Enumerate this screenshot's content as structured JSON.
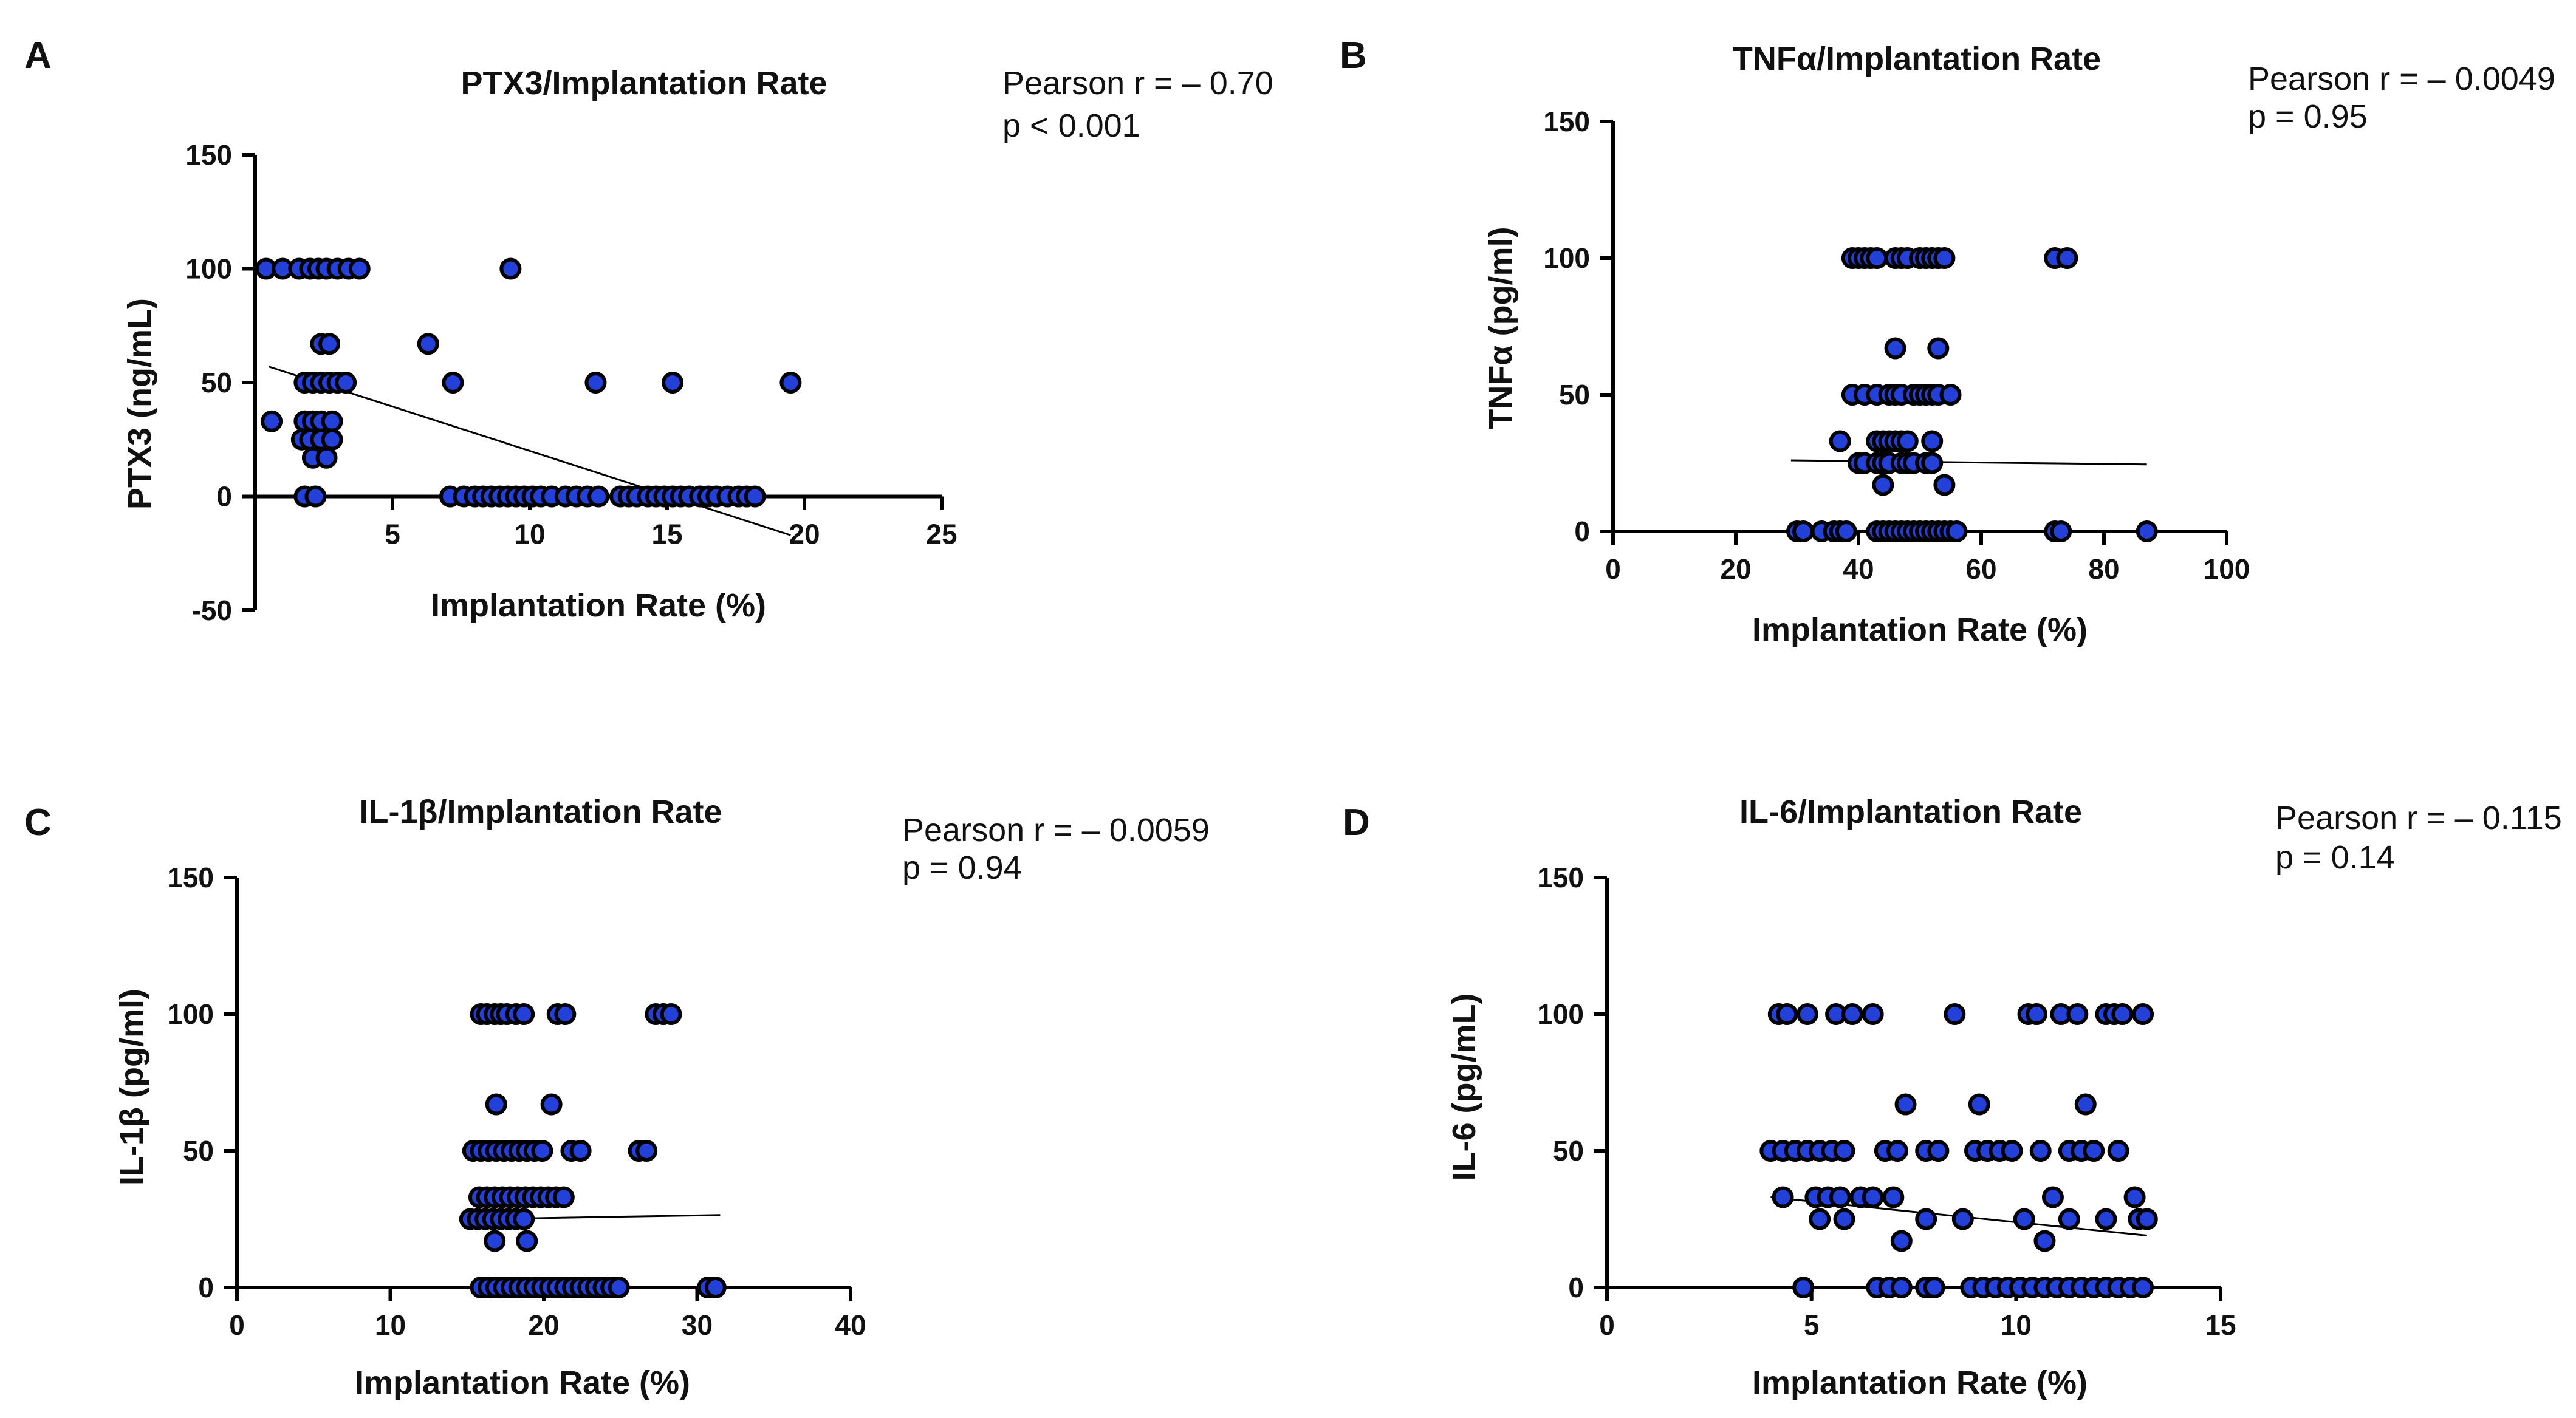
{
  "chart_data": [
    {
      "id": "A",
      "type": "scatter",
      "panel_label": "A",
      "title": "PTX3/Implantation Rate",
      "stat_lines": [
        "Pearson r = – 0.70",
        "p < 0.001"
      ],
      "xlabel": "Implantation Rate (%)",
      "ylabel": "PTX3 (ng/mL)",
      "xlim": [
        0,
        25
      ],
      "ylim": [
        -50,
        150
      ],
      "x_axis_at_y": 0,
      "xticks": [
        5,
        10,
        15,
        20,
        25
      ],
      "yticks": [
        -50,
        0,
        50,
        100,
        150
      ],
      "regression": [
        [
          0.5,
          57
        ],
        [
          19.5,
          -17
        ]
      ],
      "points": [
        [
          0.4,
          100
        ],
        [
          1.0,
          100
        ],
        [
          1.6,
          100
        ],
        [
          2.0,
          100
        ],
        [
          2.3,
          100
        ],
        [
          2.6,
          100
        ],
        [
          3.0,
          100
        ],
        [
          3.4,
          100
        ],
        [
          3.8,
          100
        ],
        [
          9.3,
          100
        ],
        [
          2.4,
          67
        ],
        [
          2.7,
          67
        ],
        [
          6.3,
          67
        ],
        [
          1.8,
          50
        ],
        [
          2.1,
          50
        ],
        [
          2.4,
          50
        ],
        [
          2.7,
          50
        ],
        [
          3.0,
          50
        ],
        [
          3.3,
          50
        ],
        [
          7.2,
          50
        ],
        [
          12.4,
          50
        ],
        [
          15.2,
          50
        ],
        [
          19.5,
          50
        ],
        [
          0.6,
          33
        ],
        [
          1.8,
          33
        ],
        [
          2.1,
          33
        ],
        [
          2.4,
          33
        ],
        [
          2.8,
          33
        ],
        [
          1.7,
          25
        ],
        [
          2.0,
          25
        ],
        [
          2.4,
          25
        ],
        [
          2.8,
          25
        ],
        [
          2.1,
          17
        ],
        [
          2.6,
          17
        ],
        [
          1.8,
          0
        ],
        [
          2.2,
          0
        ],
        [
          7.1,
          0
        ],
        [
          7.6,
          0
        ],
        [
          8.0,
          0
        ],
        [
          8.3,
          0
        ],
        [
          8.6,
          0
        ],
        [
          8.9,
          0
        ],
        [
          9.2,
          0
        ],
        [
          9.5,
          0
        ],
        [
          9.8,
          0
        ],
        [
          10.1,
          0
        ],
        [
          10.4,
          0
        ],
        [
          10.8,
          0
        ],
        [
          11.3,
          0
        ],
        [
          11.7,
          0
        ],
        [
          12.1,
          0
        ],
        [
          12.5,
          0
        ],
        [
          13.3,
          0
        ],
        [
          13.6,
          0
        ],
        [
          13.9,
          0
        ],
        [
          14.3,
          0
        ],
        [
          14.6,
          0
        ],
        [
          14.9,
          0
        ],
        [
          15.2,
          0
        ],
        [
          15.5,
          0
        ],
        [
          15.8,
          0
        ],
        [
          16.2,
          0
        ],
        [
          16.5,
          0
        ],
        [
          16.8,
          0
        ],
        [
          17.2,
          0
        ],
        [
          17.6,
          0
        ],
        [
          17.9,
          0
        ],
        [
          18.2,
          0
        ]
      ]
    },
    {
      "id": "B",
      "type": "scatter",
      "panel_label": "B",
      "title": "TNFα/Implantation Rate",
      "stat_lines": [
        "Pearson r = – 0.0049",
        "p = 0.95"
      ],
      "xlabel": "Implantation Rate (%)",
      "ylabel": "TNFα  (pg/ml)",
      "xlim": [
        0,
        100
      ],
      "ylim": [
        0,
        150
      ],
      "x_axis_at_y": 0,
      "xticks": [
        0,
        20,
        40,
        60,
        80,
        100
      ],
      "yticks": [
        0,
        50,
        100,
        150
      ],
      "regression": [
        [
          29,
          26
        ],
        [
          87,
          24.5
        ]
      ],
      "points": [
        [
          39,
          100
        ],
        [
          40,
          100
        ],
        [
          41,
          100
        ],
        [
          42,
          100
        ],
        [
          43,
          100
        ],
        [
          46,
          100
        ],
        [
          47,
          100
        ],
        [
          48,
          100
        ],
        [
          50,
          100
        ],
        [
          51,
          100
        ],
        [
          52,
          100
        ],
        [
          53,
          100
        ],
        [
          54,
          100
        ],
        [
          72,
          100
        ],
        [
          74,
          100
        ],
        [
          46,
          67
        ],
        [
          53,
          67
        ],
        [
          39,
          50
        ],
        [
          41,
          50
        ],
        [
          43,
          50
        ],
        [
          45,
          50
        ],
        [
          46,
          50
        ],
        [
          47,
          50
        ],
        [
          49,
          50
        ],
        [
          50,
          50
        ],
        [
          51,
          50
        ],
        [
          52,
          50
        ],
        [
          53,
          50
        ],
        [
          55,
          50
        ],
        [
          37,
          33
        ],
        [
          43,
          33
        ],
        [
          44,
          33
        ],
        [
          45,
          33
        ],
        [
          46,
          33
        ],
        [
          47,
          33
        ],
        [
          48,
          33
        ],
        [
          52,
          33
        ],
        [
          40,
          25
        ],
        [
          41,
          25
        ],
        [
          43,
          25
        ],
        [
          44,
          25
        ],
        [
          45,
          25
        ],
        [
          47,
          25
        ],
        [
          48,
          25
        ],
        [
          49,
          25
        ],
        [
          51,
          25
        ],
        [
          52,
          25
        ],
        [
          44,
          17
        ],
        [
          54,
          17
        ],
        [
          30,
          0
        ],
        [
          31,
          0
        ],
        [
          34,
          0
        ],
        [
          36,
          0
        ],
        [
          37,
          0
        ],
        [
          38,
          0
        ],
        [
          43,
          0
        ],
        [
          44,
          0
        ],
        [
          45,
          0
        ],
        [
          46,
          0
        ],
        [
          47,
          0
        ],
        [
          48,
          0
        ],
        [
          49,
          0
        ],
        [
          50,
          0
        ],
        [
          51,
          0
        ],
        [
          52,
          0
        ],
        [
          53,
          0
        ],
        [
          54,
          0
        ],
        [
          55,
          0
        ],
        [
          56,
          0
        ],
        [
          72,
          0
        ],
        [
          73,
          0
        ],
        [
          87,
          0
        ]
      ]
    },
    {
      "id": "C",
      "type": "scatter",
      "panel_label": "C",
      "title": "IL-1β/Implantation Rate",
      "stat_lines": [
        "Pearson r = – 0.0059",
        "p = 0.94"
      ],
      "xlabel": "Implantation Rate (%)",
      "ylabel": "IL-1β (pg/ml)",
      "xlim": [
        0,
        40
      ],
      "ylim": [
        0,
        150
      ],
      "x_axis_at_y": 0,
      "xticks": [
        0,
        10,
        20,
        30,
        40
      ],
      "yticks": [
        0,
        50,
        100,
        150
      ],
      "regression": [
        [
          16,
          25
        ],
        [
          31.5,
          26.5
        ]
      ],
      "points": [
        [
          15.9,
          100
        ],
        [
          16.3,
          100
        ],
        [
          16.8,
          100
        ],
        [
          17.2,
          100
        ],
        [
          17.6,
          100
        ],
        [
          18.2,
          100
        ],
        [
          18.7,
          100
        ],
        [
          20.9,
          100
        ],
        [
          21.4,
          100
        ],
        [
          27.3,
          100
        ],
        [
          27.8,
          100
        ],
        [
          28.3,
          100
        ],
        [
          16.9,
          67
        ],
        [
          20.5,
          67
        ],
        [
          15.4,
          50
        ],
        [
          15.9,
          50
        ],
        [
          16.4,
          50
        ],
        [
          16.9,
          50
        ],
        [
          17.4,
          50
        ],
        [
          17.9,
          50
        ],
        [
          18.4,
          50
        ],
        [
          18.9,
          50
        ],
        [
          19.4,
          50
        ],
        [
          19.9,
          50
        ],
        [
          21.8,
          50
        ],
        [
          22.4,
          50
        ],
        [
          26.2,
          50
        ],
        [
          26.7,
          50
        ],
        [
          15.8,
          33
        ],
        [
          16.3,
          33
        ],
        [
          16.8,
          33
        ],
        [
          17.3,
          33
        ],
        [
          17.8,
          33
        ],
        [
          18.3,
          33
        ],
        [
          18.8,
          33
        ],
        [
          19.3,
          33
        ],
        [
          19.8,
          33
        ],
        [
          20.3,
          33
        ],
        [
          20.8,
          33
        ],
        [
          21.3,
          33
        ],
        [
          15.2,
          25
        ],
        [
          15.7,
          25
        ],
        [
          16.2,
          25
        ],
        [
          16.7,
          25
        ],
        [
          17.2,
          25
        ],
        [
          17.7,
          25
        ],
        [
          18.2,
          25
        ],
        [
          18.7,
          25
        ],
        [
          16.8,
          17
        ],
        [
          18.9,
          17
        ],
        [
          15.9,
          0
        ],
        [
          16.4,
          0
        ],
        [
          16.9,
          0
        ],
        [
          17.4,
          0
        ],
        [
          17.9,
          0
        ],
        [
          18.4,
          0
        ],
        [
          18.9,
          0
        ],
        [
          19.4,
          0
        ],
        [
          19.9,
          0
        ],
        [
          20.4,
          0
        ],
        [
          20.9,
          0
        ],
        [
          21.4,
          0
        ],
        [
          21.9,
          0
        ],
        [
          22.4,
          0
        ],
        [
          22.9,
          0
        ],
        [
          23.4,
          0
        ],
        [
          23.9,
          0
        ],
        [
          24.4,
          0
        ],
        [
          24.9,
          0
        ],
        [
          30.7,
          0
        ],
        [
          31.2,
          0
        ]
      ]
    },
    {
      "id": "D",
      "type": "scatter",
      "panel_label": "D",
      "title": "IL-6/Implantation Rate",
      "stat_lines": [
        "Pearson r = – 0.115",
        "p = 0.14"
      ],
      "xlabel": "Implantation Rate (%)",
      "ylabel": "IL-6  (pg/mL)",
      "xlim": [
        0,
        15
      ],
      "ylim": [
        0,
        150
      ],
      "x_axis_at_y": 0,
      "xticks": [
        0,
        5,
        10,
        15
      ],
      "yticks": [
        0,
        50,
        100,
        150
      ],
      "regression": [
        [
          4.0,
          33
        ],
        [
          13.2,
          19
        ]
      ],
      "points": [
        [
          4.2,
          100
        ],
        [
          4.4,
          100
        ],
        [
          4.9,
          100
        ],
        [
          5.6,
          100
        ],
        [
          6.0,
          100
        ],
        [
          6.5,
          100
        ],
        [
          8.5,
          100
        ],
        [
          10.3,
          100
        ],
        [
          10.5,
          100
        ],
        [
          11.1,
          100
        ],
        [
          11.5,
          100
        ],
        [
          12.2,
          100
        ],
        [
          12.4,
          100
        ],
        [
          12.6,
          100
        ],
        [
          13.1,
          100
        ],
        [
          7.3,
          67
        ],
        [
          9.1,
          67
        ],
        [
          11.7,
          67
        ],
        [
          4.0,
          50
        ],
        [
          4.3,
          50
        ],
        [
          4.6,
          50
        ],
        [
          4.9,
          50
        ],
        [
          5.2,
          50
        ],
        [
          5.5,
          50
        ],
        [
          5.8,
          50
        ],
        [
          6.8,
          50
        ],
        [
          7.1,
          50
        ],
        [
          7.8,
          50
        ],
        [
          8.1,
          50
        ],
        [
          9.0,
          50
        ],
        [
          9.3,
          50
        ],
        [
          9.6,
          50
        ],
        [
          9.9,
          50
        ],
        [
          10.6,
          50
        ],
        [
          11.3,
          50
        ],
        [
          11.6,
          50
        ],
        [
          11.9,
          50
        ],
        [
          12.5,
          50
        ],
        [
          4.3,
          33
        ],
        [
          5.1,
          33
        ],
        [
          5.4,
          33
        ],
        [
          5.7,
          33
        ],
        [
          6.2,
          33
        ],
        [
          6.5,
          33
        ],
        [
          7.0,
          33
        ],
        [
          10.9,
          33
        ],
        [
          12.9,
          33
        ],
        [
          5.2,
          25
        ],
        [
          5.8,
          25
        ],
        [
          7.8,
          25
        ],
        [
          8.7,
          25
        ],
        [
          10.2,
          25
        ],
        [
          11.3,
          25
        ],
        [
          12.2,
          25
        ],
        [
          13.0,
          25
        ],
        [
          13.2,
          25
        ],
        [
          7.2,
          17
        ],
        [
          10.7,
          17
        ],
        [
          4.8,
          0
        ],
        [
          6.6,
          0
        ],
        [
          6.9,
          0
        ],
        [
          7.2,
          0
        ],
        [
          7.8,
          0
        ],
        [
          8.0,
          0
        ],
        [
          8.9,
          0
        ],
        [
          9.2,
          0
        ],
        [
          9.5,
          0
        ],
        [
          9.8,
          0
        ],
        [
          10.1,
          0
        ],
        [
          10.4,
          0
        ],
        [
          10.7,
          0
        ],
        [
          11.0,
          0
        ],
        [
          11.3,
          0
        ],
        [
          11.6,
          0
        ],
        [
          11.9,
          0
        ],
        [
          12.2,
          0
        ],
        [
          12.5,
          0
        ],
        [
          12.8,
          0
        ],
        [
          13.1,
          0
        ]
      ]
    }
  ]
}
